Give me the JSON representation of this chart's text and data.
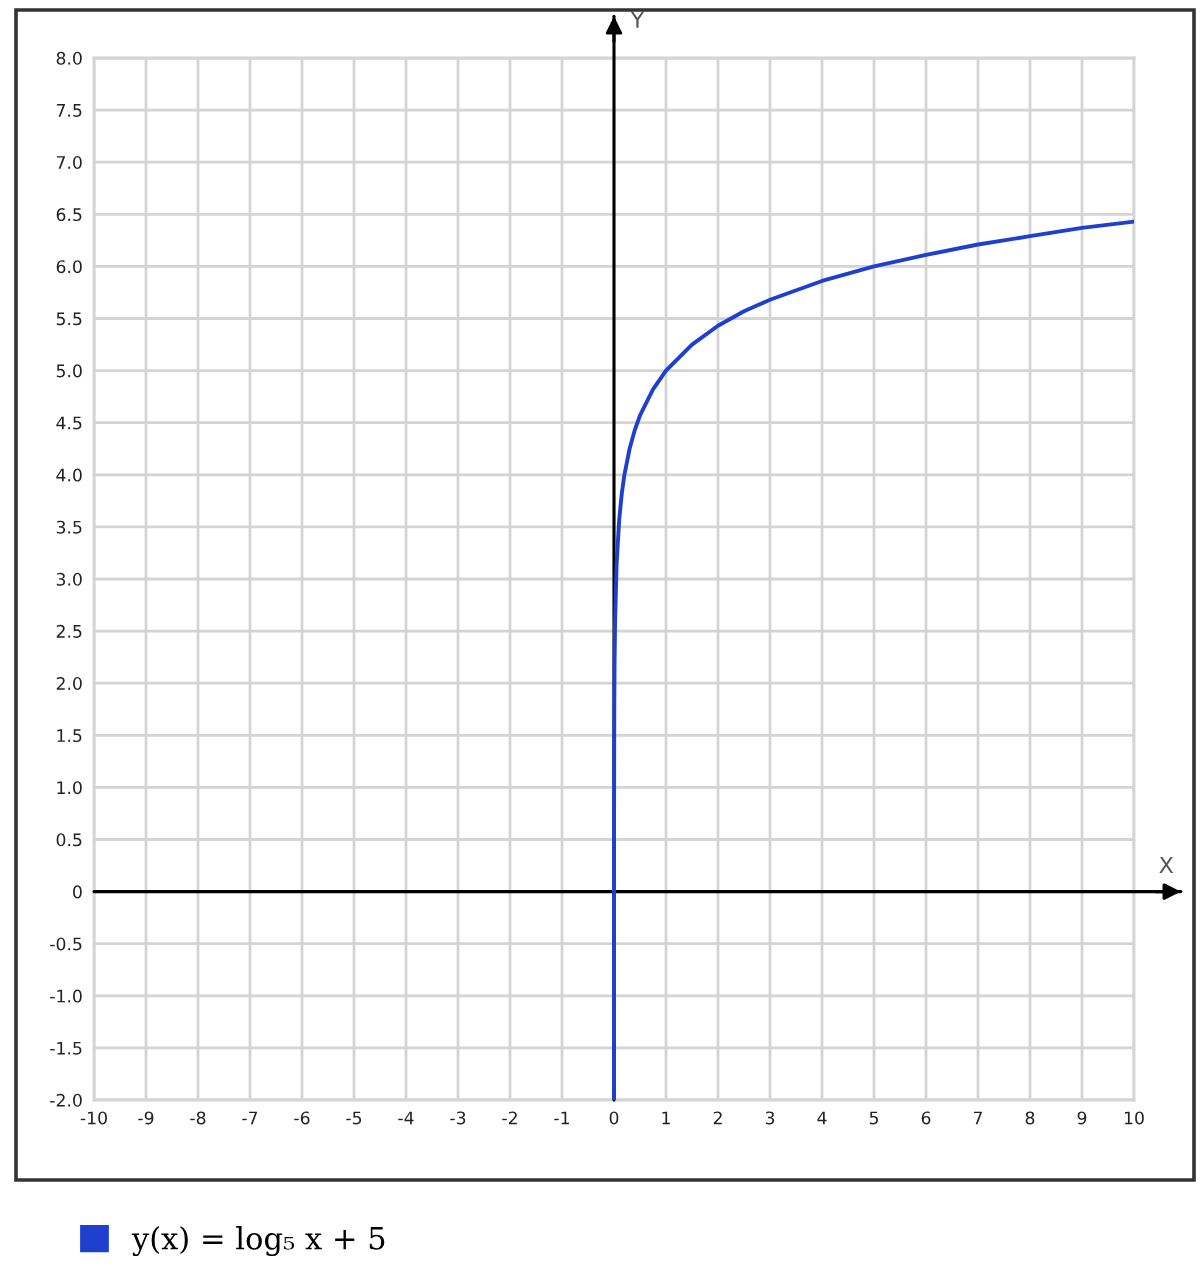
{
  "chart_data": {
    "type": "line",
    "xlabel": "X",
    "ylabel": "Y",
    "x": [
      0,
      0.0001,
      0.001,
      0.005,
      0.01,
      0.02,
      0.05,
      0.1,
      0.15,
      0.2,
      0.3,
      0.4,
      0.5,
      0.75,
      1,
      1.5,
      2,
      2.5,
      3,
      4,
      5,
      6,
      7,
      8,
      9,
      10
    ],
    "series": [
      {
        "name": "y(x) = log₅ x + 5",
        "color": "#1f3fcf",
        "values": [
          -2,
          -0.72,
          0.71,
          1.71,
          2.14,
          2.57,
          3.14,
          3.57,
          3.82,
          4.0,
          4.25,
          4.43,
          4.57,
          4.82,
          5.0,
          5.25,
          5.43,
          5.57,
          5.68,
          5.86,
          6.0,
          6.11,
          6.21,
          6.29,
          6.37,
          6.43
        ]
      }
    ],
    "xlim": [
      -10,
      10
    ],
    "ylim": [
      -2,
      8
    ],
    "xticks": [
      -10,
      -9,
      -8,
      -7,
      -6,
      -5,
      -4,
      -3,
      -2,
      -1,
      0,
      1,
      2,
      3,
      4,
      5,
      6,
      7,
      8,
      9,
      10
    ],
    "yticks": [
      {
        "value": -2,
        "label": "-2.0"
      },
      {
        "value": -1.5,
        "label": "-1.5"
      },
      {
        "value": -1,
        "label": "-1.0"
      },
      {
        "value": -0.5,
        "label": "-0.5"
      },
      0,
      {
        "value": 0.5,
        "label": "0.5"
      },
      {
        "value": 1,
        "label": "1.0"
      },
      {
        "value": 1.5,
        "label": "1.5"
      },
      {
        "value": 2,
        "label": "2.0"
      },
      {
        "value": 2.5,
        "label": "2.5"
      },
      {
        "value": 3,
        "label": "3.0"
      },
      {
        "value": 3.5,
        "label": "3.5"
      },
      {
        "value": 4,
        "label": "4.0"
      },
      {
        "value": 4.5,
        "label": "4.5"
      },
      {
        "value": 5,
        "label": "5.0"
      },
      {
        "value": 5.5,
        "label": "5.5"
      },
      {
        "value": 6,
        "label": "6.0"
      },
      {
        "value": 6.5,
        "label": "6.5"
      },
      {
        "value": 7,
        "label": "7.0"
      },
      {
        "value": 7.5,
        "label": "7.5"
      },
      {
        "value": 8,
        "label": "8.0"
      }
    ],
    "grid": true,
    "legend": "bottom left",
    "line_style": "solid"
  }
}
